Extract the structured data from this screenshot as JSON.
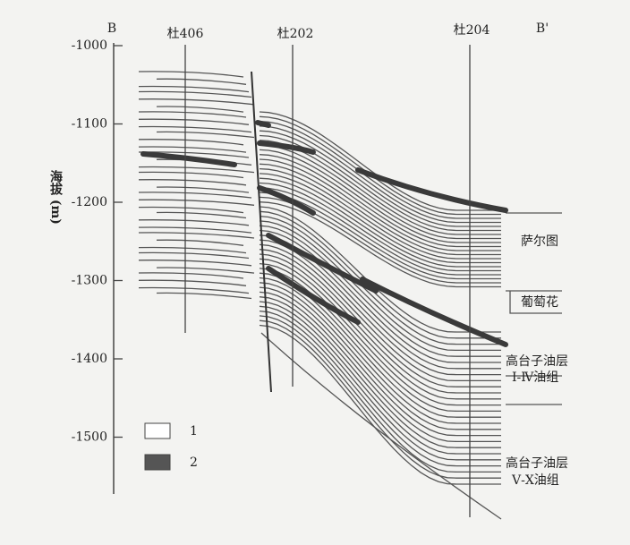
{
  "section": {
    "start": "B",
    "end": "B'"
  },
  "wells": [
    "杜406",
    "杜202",
    "杜204"
  ],
  "axis": {
    "label": "海拔 (m)",
    "ticks": [
      "-1000",
      "-1100",
      "-1200",
      "-1300",
      "-1400",
      "-1500"
    ]
  },
  "zones": [
    "萨尔图",
    "葡萄花",
    "高台子油层",
    "Ⅰ-Ⅳ油组",
    "高台子油层",
    "Ⅴ-Ⅹ油组"
  ],
  "legend": [
    "1",
    "2"
  ]
}
